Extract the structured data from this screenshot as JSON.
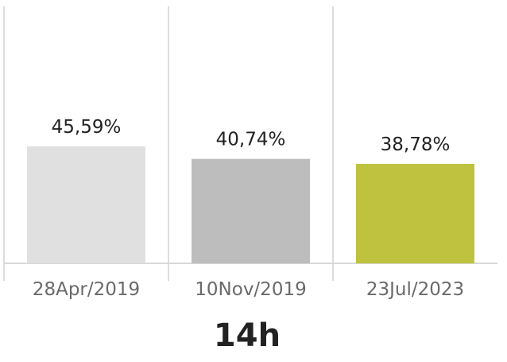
{
  "chart_data": {
    "type": "bar",
    "categories": [
      "28Apr/2019",
      "10Nov/2019",
      "23Jul/2023"
    ],
    "values": [
      45.59,
      40.74,
      38.78
    ],
    "value_labels": [
      "45,59%",
      "40,74%",
      "38,78%"
    ],
    "colors": [
      "#e0e0e0",
      "#bdbdbd",
      "#bec23f"
    ],
    "gridline_color": "#dcdcdc",
    "baseline_color": "#d8d8d8",
    "footer": "14h",
    "grid": true
  }
}
